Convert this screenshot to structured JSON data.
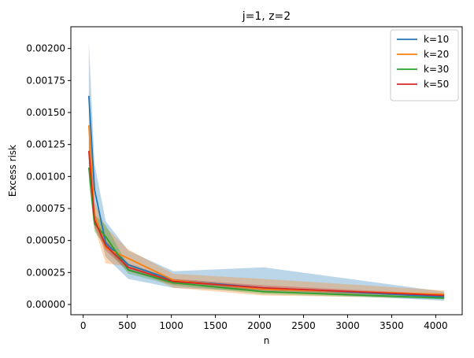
{
  "chart_data": {
    "type": "line",
    "title": "j=1, z=2",
    "xlabel": "n",
    "ylabel": "Excess risk",
    "xlim": [
      -140,
      4300
    ],
    "ylim": [
      -8e-05,
      0.00217
    ],
    "xticks": [
      0,
      500,
      1000,
      1500,
      2000,
      2500,
      3000,
      3500,
      4000
    ],
    "xtick_labels": [
      "0",
      "500",
      "1000",
      "1500",
      "2000",
      "2500",
      "3000",
      "3500",
      "4000"
    ],
    "yticks": [
      0,
      0.00025,
      0.0005,
      0.00075,
      0.001,
      0.00125,
      0.0015,
      0.00175,
      0.002
    ],
    "ytick_labels": [
      "0.00000",
      "0.00025",
      "0.00050",
      "0.00075",
      "0.00100",
      "0.00125",
      "0.00150",
      "0.00175",
      "0.00200"
    ],
    "grid": false,
    "legend_position": "top-right",
    "x": [
      64,
      128,
      256,
      512,
      1024,
      2048,
      4096
    ],
    "series": [
      {
        "name": "k=10",
        "color": "#1f77b4",
        "values": [
          0.00163,
          0.0009,
          0.00048,
          0.00031,
          0.00019,
          0.00013,
          6e-05
        ],
        "lower": [
          0.0012,
          0.0007,
          0.00037,
          0.0002,
          0.00013,
          0.0001,
          3e-05
        ],
        "upper": [
          0.00205,
          0.0011,
          0.00065,
          0.00042,
          0.00026,
          0.00029,
          0.0001
        ]
      },
      {
        "name": "k=20",
        "color": "#ff7f0e",
        "values": [
          0.0014,
          0.0007,
          0.00044,
          0.00036,
          0.00019,
          0.00012,
          8e-05
        ],
        "lower": [
          0.0011,
          0.0006,
          0.00032,
          0.0003,
          0.00013,
          7e-05,
          5e-05
        ],
        "upper": [
          0.00168,
          0.0008,
          0.0006,
          0.00043,
          0.00024,
          0.0002,
          0.00011
        ]
      },
      {
        "name": "k=30",
        "color": "#2ca02c",
        "values": [
          0.00107,
          0.00063,
          0.00053,
          0.00027,
          0.00017,
          0.0001,
          5e-05
        ],
        "lower": [
          0.00095,
          0.00057,
          0.00045,
          0.00024,
          0.00015,
          8e-05,
          4e-05
        ],
        "upper": [
          0.0012,
          0.0007,
          0.00062,
          0.0003,
          0.00019,
          0.00012,
          6e-05
        ]
      },
      {
        "name": "k=50",
        "color": "#d62728",
        "values": [
          0.0012,
          0.00066,
          0.00046,
          0.00029,
          0.00018,
          0.00013,
          7e-05
        ],
        "lower": [
          0.0011,
          0.0006,
          0.00042,
          0.00026,
          0.00016,
          0.00011,
          6e-05
        ],
        "upper": [
          0.0013,
          0.0007,
          0.0005,
          0.00032,
          0.0002,
          0.00015,
          8e-05
        ]
      }
    ]
  }
}
